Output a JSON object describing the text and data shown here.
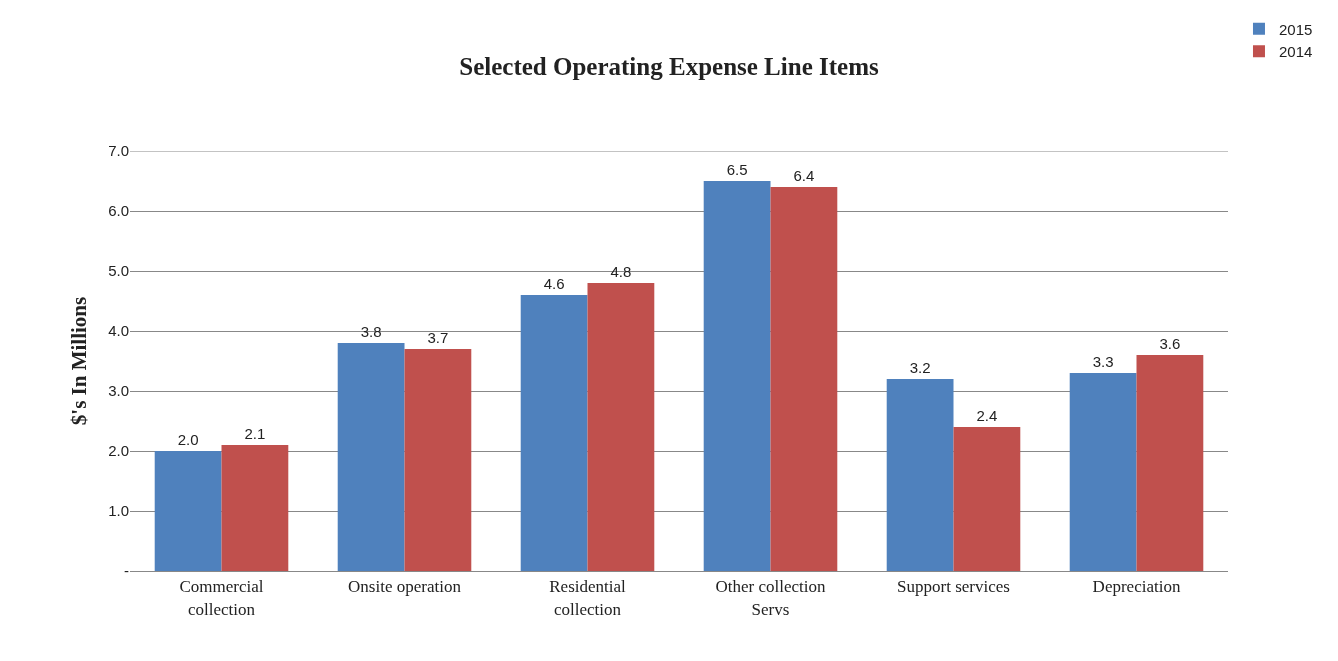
{
  "chart_data": {
    "type": "bar",
    "title": "Selected Operating Expense Line Items",
    "ylabel": "$'s In Millions",
    "categories": [
      "Commercial collection",
      "Onsite operation",
      "Residential collection",
      "Other collection Servs",
      "Support services",
      "Depreciation"
    ],
    "series": [
      {
        "name": "2015",
        "color": "#4f81bd",
        "values": [
          2.0,
          3.8,
          4.6,
          6.5,
          3.2,
          3.3
        ],
        "value_labels": [
          "2.0",
          "3.8",
          "4.6",
          "6.5",
          "3.2",
          "3.3"
        ]
      },
      {
        "name": "2014",
        "color": "#c0504d",
        "values": [
          2.1,
          3.7,
          4.8,
          6.4,
          2.4,
          3.6
        ],
        "value_labels": [
          "2.1",
          "3.7",
          "4.8",
          "6.4",
          "2.4",
          "3.6"
        ]
      }
    ],
    "ylim": [
      0,
      7
    ],
    "yticks": [
      {
        "value": 0,
        "label": "-"
      },
      {
        "value": 1,
        "label": "1.0"
      },
      {
        "value": 2,
        "label": "2.0"
      },
      {
        "value": 3,
        "label": "3.0"
      },
      {
        "value": 4,
        "label": "4.0"
      },
      {
        "value": 5,
        "label": "5.0"
      },
      {
        "value": 6,
        "label": "6.0"
      },
      {
        "value": 7,
        "label": "7.0"
      }
    ],
    "grid": "y",
    "legend": "top right"
  }
}
